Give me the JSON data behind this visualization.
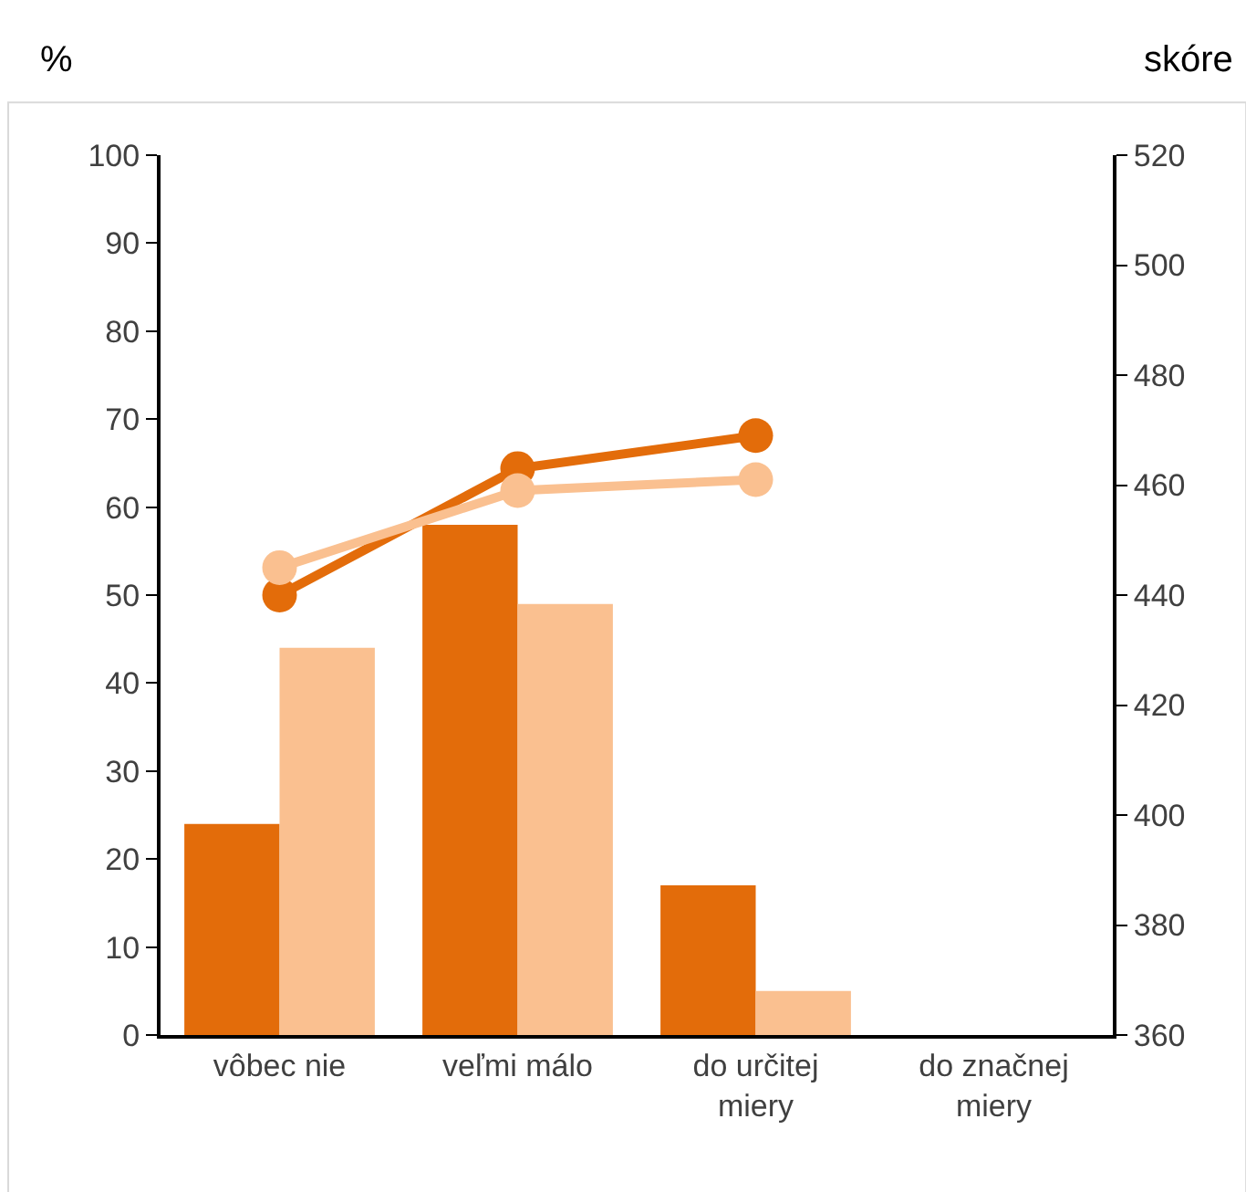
{
  "chart_data": {
    "type": "bar",
    "ylabel": "%",
    "y2label": "skóre",
    "categories": [
      "vôbec nie",
      "veľmi málo",
      "do určitej\nmiery",
      "do značnej\nmiery"
    ],
    "series": [
      {
        "color": "#e36c0a",
        "values": [
          24,
          58,
          17,
          null
        ]
      },
      {
        "color": "#fac090",
        "values": [
          44,
          49,
          5,
          null
        ]
      },
      {
        "type": "line",
        "axis": "y2",
        "color": "#e36c0a",
        "values": [
          440,
          463,
          469,
          null
        ],
        "marker": "circle",
        "line_style": "solid"
      },
      {
        "type": "line",
        "axis": "y2",
        "color": "#fac090",
        "values": [
          445,
          459,
          461,
          null
        ],
        "marker": "circle",
        "line_style": "solid"
      }
    ],
    "ylim": [
      0,
      100
    ],
    "yticks": [
      0,
      10,
      20,
      30,
      40,
      50,
      60,
      70,
      80,
      90,
      100
    ],
    "y2lim": [
      360,
      520
    ],
    "y2ticks": [
      360,
      380,
      400,
      420,
      440,
      460,
      480,
      500,
      520
    ],
    "grid": false
  }
}
